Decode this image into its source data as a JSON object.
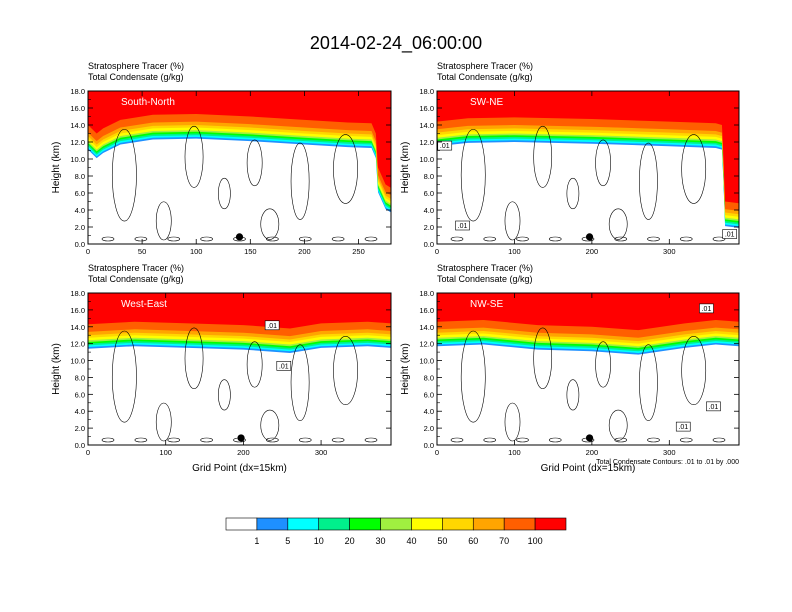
{
  "title": "2014-02-24_06:00:00",
  "colors": {
    "bins": [
      "#ffffff",
      "#1e90ff",
      "#00ffff",
      "#00f08c",
      "#00ff00",
      "#a0f040",
      "#ffff00",
      "#ffd700",
      "#ffa500",
      "#ff5f00",
      "#ff0000"
    ]
  },
  "colorbar": {
    "labels": [
      "1",
      "5",
      "10",
      "20",
      "30",
      "40",
      "50",
      "60",
      "70",
      "100"
    ]
  },
  "footnote": "Total Condensate Contours: .01 to .01 by .000",
  "chart_data": [
    {
      "type": "contour",
      "panel_label": "South-North",
      "title_line1": "Stratosphere Tracer   (%)",
      "title_line2": "Total Condensate   (g/kg)",
      "ylabel": "Height (km)",
      "xlabel": "",
      "xlim": [
        0,
        280
      ],
      "ylim": [
        0,
        18
      ],
      "x_ticks": [
        "0",
        "50",
        "100",
        "150",
        "200",
        "250"
      ],
      "x_tick_values": [
        0,
        50,
        100,
        150,
        200,
        250
      ],
      "y_ticks": [
        "0.0",
        "2.0",
        "4.0",
        "6.0",
        "8.0",
        "10.0",
        "12.0",
        "14.0",
        "16.0",
        "18.0"
      ],
      "tracer_base_km": [
        [
          0,
          14.0
        ],
        [
          8,
          13.0
        ],
        [
          14,
          13.6
        ],
        [
          30,
          14.6
        ],
        [
          60,
          15.2
        ],
        [
          100,
          15.3
        ],
        [
          150,
          15.0
        ],
        [
          200,
          14.6
        ],
        [
          240,
          14.3
        ],
        [
          262,
          14.2
        ],
        [
          266,
          13.0
        ],
        [
          268,
          9.0
        ],
        [
          275,
          7.0
        ],
        [
          280,
          6.6
        ]
      ],
      "markers": [
        {
          "x": 140,
          "y": 0.6
        }
      ],
      "contour_labels": []
    },
    {
      "type": "contour",
      "panel_label": "SW-NE",
      "title_line1": "Stratosphere Tracer   (%)",
      "title_line2": "Total Condensate   (g/kg)",
      "ylabel": "Height (km)",
      "xlabel": "",
      "xlim": [
        0,
        390
      ],
      "ylim": [
        0,
        18
      ],
      "x_ticks": [
        "0",
        "100",
        "200",
        "300"
      ],
      "x_tick_values": [
        0,
        100,
        200,
        300
      ],
      "y_ticks": [
        "0.0",
        "2.0",
        "4.0",
        "6.0",
        "8.0",
        "10.0",
        "12.0",
        "14.0",
        "16.0",
        "18.0"
      ],
      "tracer_base_km": [
        [
          0,
          14.4
        ],
        [
          40,
          14.8
        ],
        [
          100,
          14.9
        ],
        [
          200,
          14.7
        ],
        [
          300,
          14.4
        ],
        [
          360,
          14.2
        ],
        [
          368,
          14.0
        ],
        [
          370,
          10.0
        ],
        [
          372,
          5.0
        ],
        [
          390,
          4.8
        ]
      ],
      "markers": [
        {
          "x": 197,
          "y": 0.6
        }
      ],
      "contour_labels": [
        {
          "text": ".01",
          "x": 10,
          "y": 11.4
        },
        {
          "text": ".01",
          "x": 33,
          "y": 2.0
        },
        {
          "text": ".01",
          "x": 378,
          "y": 1.0
        }
      ]
    },
    {
      "type": "contour",
      "panel_label": "West-East",
      "title_line1": "Stratosphere Tracer   (%)",
      "title_line2": "Total Condensate   (g/kg)",
      "ylabel": "Height (km)",
      "xlabel": "Grid Point (dx=15km)",
      "xlim": [
        0,
        390
      ],
      "ylim": [
        0,
        18
      ],
      "x_ticks": [
        "0",
        "100",
        "200",
        "300"
      ],
      "x_tick_values": [
        0,
        100,
        200,
        300
      ],
      "y_ticks": [
        "0.0",
        "2.0",
        "4.0",
        "6.0",
        "8.0",
        "10.0",
        "12.0",
        "14.0",
        "16.0",
        "18.0"
      ],
      "tracer_base_km": [
        [
          0,
          14.3
        ],
        [
          60,
          14.6
        ],
        [
          130,
          14.4
        ],
        [
          200,
          14.2
        ],
        [
          260,
          13.8
        ],
        [
          300,
          14.4
        ],
        [
          360,
          14.6
        ],
        [
          390,
          14.4
        ]
      ],
      "markers": [
        {
          "x": 197,
          "y": 0.6
        }
      ],
      "contour_labels": [
        {
          "text": ".01",
          "x": 237,
          "y": 14.0
        },
        {
          "text": ".01",
          "x": 252,
          "y": 9.2
        }
      ]
    },
    {
      "type": "contour",
      "panel_label": "NW-SE",
      "title_line1": "Stratosphere Tracer   (%)",
      "title_line2": "Total Condensate   (g/kg)",
      "ylabel": "Height (km)",
      "xlabel": "Grid Point (dx=15km)",
      "xlim": [
        0,
        390
      ],
      "ylim": [
        0,
        18
      ],
      "x_ticks": [
        "0",
        "100",
        "200",
        "300"
      ],
      "x_tick_values": [
        0,
        100,
        200,
        300
      ],
      "y_ticks": [
        "0.0",
        "2.0",
        "4.0",
        "6.0",
        "8.0",
        "10.0",
        "12.0",
        "14.0",
        "16.0",
        "18.0"
      ],
      "tracer_base_km": [
        [
          0,
          14.6
        ],
        [
          60,
          14.8
        ],
        [
          130,
          14.2
        ],
        [
          200,
          14.0
        ],
        [
          260,
          13.6
        ],
        [
          320,
          14.4
        ],
        [
          360,
          14.8
        ],
        [
          390,
          14.6
        ]
      ],
      "markers": [
        {
          "x": 197,
          "y": 0.6
        }
      ],
      "contour_labels": [
        {
          "text": ".01",
          "x": 348,
          "y": 16.0
        },
        {
          "text": ".01",
          "x": 357,
          "y": 4.4
        },
        {
          "text": ".01",
          "x": 318,
          "y": 2.0
        }
      ]
    }
  ]
}
